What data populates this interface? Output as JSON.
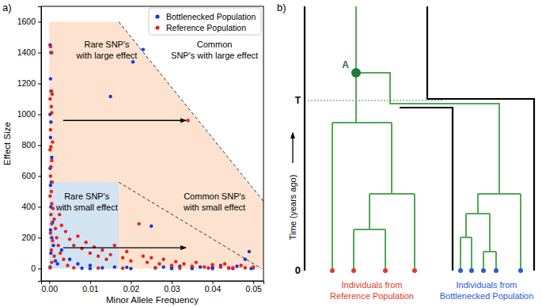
{
  "chart_data": {
    "type": "scatter",
    "title": "a)",
    "x_label": "Minor Allele Frequency",
    "y_label": "Effect Size",
    "xlim": [
      -0.002,
      0.0525
    ],
    "ylim": [
      -80,
      1700
    ],
    "xticks": [
      {
        "value": 0,
        "label": "0.00"
      },
      {
        "value": 0.01,
        "label": "0.01"
      },
      {
        "value": 0.02,
        "label": "0.02"
      },
      {
        "value": 0.03,
        "label": "0.03"
      },
      {
        "value": 0.04,
        "label": "0.04"
      },
      {
        "value": 0.05,
        "label": "0.05"
      }
    ],
    "yticks": [
      0,
      200,
      400,
      600,
      800,
      1000,
      1200,
      1400,
      1600
    ],
    "grid": false,
    "legend": "upper right",
    "series": [
      {
        "name": "Bottlenecked Population",
        "color": "#1a35e0",
        "marker": "circle",
        "x": [
          0.0002,
          0.0004,
          0.0003,
          0.0005,
          0.0002,
          0.0004,
          0.0003,
          0.0006,
          0.0002,
          0.0005,
          0.0003,
          0.0004,
          0.0008,
          0.0003,
          0.0006,
          0.001,
          0.0004,
          0.0015,
          0.0002,
          0.003,
          0.005,
          0.007,
          0.01,
          0.013,
          0.015,
          0.016,
          0.019,
          0.0205,
          0.023,
          0.025,
          0.026,
          0.028,
          0.03,
          0.032,
          0.035,
          0.037,
          0.04,
          0.042,
          0.044,
          0.046,
          0.048,
          0.049,
          0.05,
          0.0495,
          0.045,
          0.04,
          0.035,
          0.03,
          0.02,
          0.01,
          0.008,
          0.002
        ],
        "values": [
          1450,
          1400,
          1230,
          1150,
          1000,
          950,
          850,
          720,
          650,
          560,
          540,
          400,
          300,
          250,
          200,
          150,
          100,
          50,
          10,
          120,
          60,
          30,
          20,
          5,
          1115,
          10,
          8,
          1340,
          1420,
          275,
          5,
          10,
          5,
          15,
          5,
          10,
          8,
          20,
          5,
          15,
          60,
          110,
          5,
          0,
          0,
          0,
          0,
          0,
          0,
          0,
          2,
          30
        ]
      },
      {
        "name": "Reference Population",
        "color": "#e8221b",
        "marker": "circle",
        "x": [
          0.0003,
          0.0006,
          0.0004,
          0.0007,
          0.0002,
          0.0005,
          0.0006,
          0.0003,
          0.0008,
          0.0004,
          0.0002,
          0.0006,
          0.0004,
          0.0003,
          0.0007,
          0.0005,
          0.0002,
          0.0006,
          0.0009,
          0.0004,
          0.0012,
          0.0006,
          0.0015,
          0.0003,
          0.0018,
          0.0008,
          0.0022,
          0.0005,
          0.0027,
          0.0012,
          0.0035,
          0.0006,
          0.0045,
          0.0002,
          0.0025,
          0.003,
          0.004,
          0.005,
          0.006,
          0.007,
          0.008,
          0.009,
          0.01,
          0.011,
          0.012,
          0.013,
          0.014,
          0.015,
          0.016,
          0.018,
          0.019,
          0.02,
          0.022,
          0.023,
          0.024,
          0.025,
          0.027,
          0.028,
          0.03,
          0.031,
          0.033,
          0.034,
          0.035,
          0.036,
          0.038,
          0.04,
          0.042,
          0.043,
          0.045,
          0.047,
          0.048,
          0.05,
          0.006,
          0.012,
          0.018,
          0.026,
          0.032,
          0.039,
          0.044
        ],
        "values": [
          1440,
          1400,
          1150,
          1130,
          1100,
          1050,
          1010,
          900,
          820,
          790,
          770,
          700,
          660,
          600,
          560,
          500,
          470,
          420,
          390,
          350,
          320,
          290,
          260,
          230,
          200,
          180,
          150,
          120,
          100,
          80,
          60,
          40,
          20,
          5,
          350,
          280,
          240,
          190,
          150,
          210,
          130,
          170,
          100,
          140,
          80,
          120,
          60,
          90,
          150,
          70,
          110,
          50,
          290,
          80,
          40,
          70,
          30,
          60,
          20,
          45,
          30,
          960,
          15,
          40,
          10,
          25,
          10,
          30,
          5,
          20,
          5,
          10,
          5,
          3,
          2,
          4,
          2,
          3,
          2
        ]
      }
    ],
    "regions": [
      {
        "color": "#fde3cf",
        "x": [
          0,
          0.017,
          0.0525,
          0.0525,
          0
        ],
        "y": [
          1600,
          1600,
          436,
          0,
          0
        ]
      },
      {
        "color": "#d3e3f1",
        "x": [
          0,
          0.017,
          0.017,
          0
        ],
        "y": [
          560,
          560,
          0,
          0
        ]
      }
    ],
    "lines": [
      {
        "x": [
          0.017,
          0.0525
        ],
        "y": [
          1600,
          436
        ],
        "color": "#333333",
        "line_style": "dashed"
      },
      {
        "x": [
          0.017,
          0.052
        ],
        "y": [
          560,
          0
        ],
        "color": "#333333",
        "line_style": "dashed"
      }
    ],
    "arrows": [
      {
        "x": [
          0.0034,
          0.0335
        ],
        "y": [
          960,
          960
        ]
      },
      {
        "x": [
          0.0034,
          0.0335
        ],
        "y": [
          135,
          135
        ]
      }
    ],
    "annotations": [
      {
        "text": [
          "Rare SNP's",
          "with large effect"
        ],
        "x": 0.0141,
        "y": 1420
      },
      {
        "text": [
          "Common",
          "SNP's with large effect"
        ],
        "x": 0.0405,
        "y": 1420
      },
      {
        "text": [
          "Rare SNP's",
          "with small effect"
        ],
        "x": 0.0092,
        "y": 433
      },
      {
        "text": [
          "Common SNP's",
          "with small effect"
        ],
        "x": 0.0405,
        "y": 433
      }
    ]
  },
  "diagram": {
    "panel_label": "b)",
    "time_axis_label": "Time (years ago)",
    "time_marks": [
      "T",
      "0"
    ],
    "node_label": "A",
    "groups": [
      {
        "label": [
          "Individuals from",
          "Reference Population"
        ],
        "color": "#e0392a"
      },
      {
        "label": [
          "Individuals from",
          "Bottlenecked Population"
        ],
        "color": "#2a5ad8"
      }
    ]
  }
}
